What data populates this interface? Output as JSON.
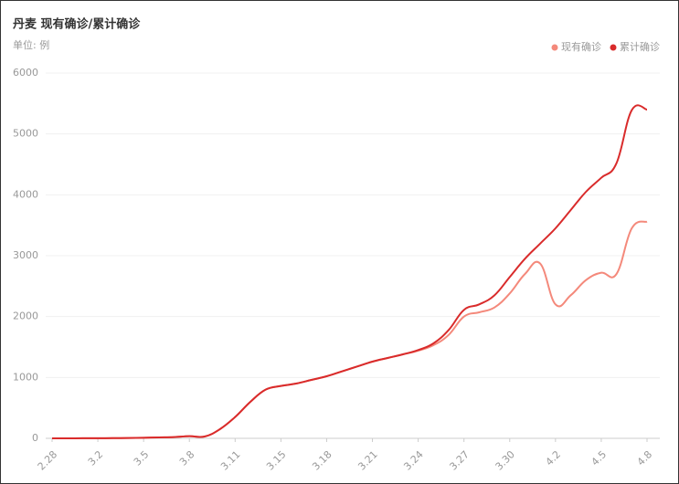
{
  "chart_data": {
    "type": "line",
    "title": "丹麦 现有确诊/累计确诊",
    "subtitle": "单位: 例",
    "categories": [
      "2.28",
      null,
      null,
      "3.2",
      null,
      null,
      "3.5",
      null,
      null,
      "3.8",
      null,
      null,
      "3.11",
      null,
      null,
      "3.15",
      null,
      null,
      "3.18",
      null,
      null,
      "3.21",
      null,
      null,
      "3.24",
      null,
      null,
      "3.27",
      null,
      null,
      "3.30",
      null,
      null,
      "4.2",
      null,
      null,
      "4.5",
      null,
      null,
      "4.8"
    ],
    "series": [
      {
        "name": "现有确诊",
        "color": "#f4897b",
        "values": [
          0,
          0,
          1,
          2,
          3,
          5,
          10,
          15,
          20,
          35,
          30,
          150,
          350,
          600,
          800,
          860,
          900,
          960,
          1020,
          1100,
          1180,
          1260,
          1320,
          1380,
          1440,
          1530,
          1700,
          2000,
          2070,
          2150,
          2380,
          2700,
          2870,
          2200,
          2350,
          2600,
          2720,
          2700,
          3450,
          3560
        ]
      },
      {
        "name": "累计确诊",
        "color": "#d92b2b",
        "values": [
          0,
          0,
          1,
          2,
          3,
          5,
          10,
          15,
          20,
          35,
          30,
          150,
          350,
          600,
          800,
          860,
          900,
          960,
          1020,
          1100,
          1180,
          1260,
          1320,
          1380,
          1450,
          1560,
          1780,
          2110,
          2200,
          2350,
          2650,
          2950,
          3200,
          3450,
          3750,
          4050,
          4280,
          4520,
          5390,
          5400
        ]
      }
    ],
    "ylim": [
      0,
      6000
    ],
    "yticks": [
      0,
      1000,
      2000,
      3000,
      4000,
      5000,
      6000
    ],
    "grid": true,
    "legend": "top-right"
  }
}
